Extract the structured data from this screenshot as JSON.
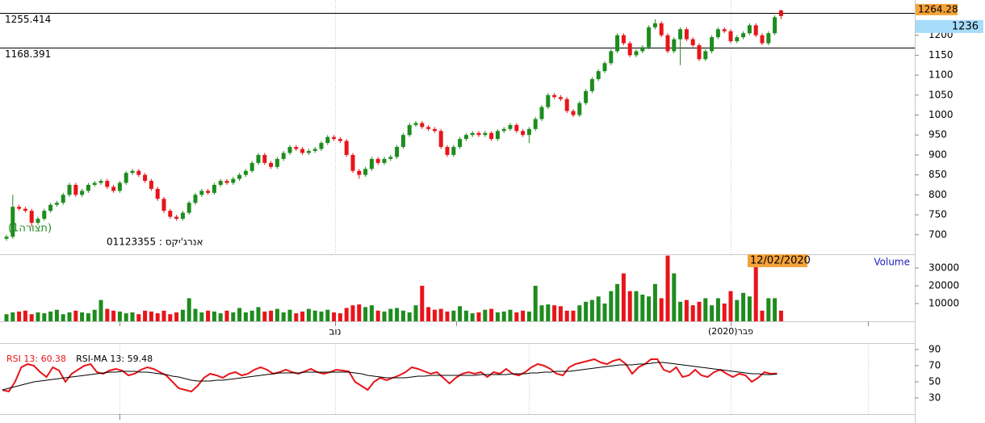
{
  "chart_data": [
    {
      "type": "candlestick",
      "open": [
        690,
        695,
        770,
        765,
        760,
        730,
        740,
        760,
        775,
        780,
        800,
        825,
        800,
        810,
        825,
        830,
        835,
        820,
        810,
        830,
        855,
        860,
        850,
        835,
        815,
        790,
        760,
        745,
        740,
        755,
        780,
        800,
        810,
        805,
        825,
        835,
        830,
        840,
        850,
        860,
        880,
        900,
        880,
        870,
        890,
        905,
        920,
        915,
        905,
        910,
        915,
        930,
        945,
        940,
        935,
        900,
        860,
        850,
        865,
        890,
        880,
        890,
        895,
        920,
        950,
        975,
        980,
        970,
        965,
        960,
        920,
        900,
        920,
        940,
        950,
        955,
        950,
        955,
        940,
        960,
        965,
        975,
        960,
        950,
        965,
        990,
        1020,
        1050,
        1045,
        1040,
        1010,
        1000,
        1030,
        1060,
        1090,
        1110,
        1130,
        1160,
        1200,
        1180,
        1150,
        1160,
        1170,
        1220,
        1230,
        1200,
        1160,
        1190,
        1215,
        1190,
        1175,
        1140,
        1160,
        1195,
        1215,
        1210,
        1185,
        1195,
        1205,
        1225,
        1200,
        1180,
        1205,
        1262
      ],
      "high": [
        700,
        800,
        775,
        770,
        765,
        745,
        765,
        780,
        785,
        805,
        830,
        830,
        815,
        830,
        835,
        840,
        840,
        825,
        835,
        860,
        865,
        865,
        855,
        840,
        820,
        795,
        765,
        750,
        760,
        785,
        805,
        815,
        815,
        830,
        840,
        840,
        845,
        855,
        865,
        885,
        905,
        905,
        885,
        895,
        910,
        925,
        925,
        920,
        915,
        920,
        935,
        950,
        950,
        945,
        940,
        905,
        865,
        870,
        895,
        895,
        895,
        900,
        925,
        955,
        980,
        985,
        985,
        975,
        970,
        965,
        925,
        925,
        945,
        955,
        960,
        960,
        960,
        960,
        965,
        970,
        980,
        980,
        965,
        970,
        995,
        1025,
        1055,
        1055,
        1050,
        1045,
        1015,
        1035,
        1065,
        1095,
        1115,
        1135,
        1165,
        1205,
        1205,
        1185,
        1165,
        1175,
        1225,
        1240,
        1235,
        1205,
        1195,
        1220,
        1220,
        1195,
        1180,
        1165,
        1200,
        1220,
        1220,
        1215,
        1200,
        1210,
        1230,
        1230,
        1205,
        1210,
        1250,
        1264.28
      ],
      "low": [
        685,
        690,
        760,
        755,
        720,
        725,
        735,
        755,
        770,
        775,
        795,
        795,
        795,
        805,
        820,
        825,
        815,
        805,
        805,
        825,
        850,
        845,
        830,
        810,
        785,
        755,
        740,
        735,
        735,
        750,
        775,
        795,
        800,
        800,
        820,
        825,
        825,
        835,
        845,
        855,
        875,
        875,
        865,
        865,
        885,
        900,
        910,
        900,
        900,
        905,
        910,
        925,
        935,
        930,
        895,
        855,
        840,
        845,
        860,
        875,
        875,
        885,
        890,
        915,
        945,
        970,
        965,
        960,
        955,
        915,
        895,
        895,
        915,
        935,
        945,
        945,
        945,
        935,
        935,
        955,
        960,
        955,
        945,
        930,
        960,
        985,
        1015,
        1040,
        1035,
        1005,
        995,
        995,
        1025,
        1055,
        1085,
        1105,
        1125,
        1155,
        1175,
        1145,
        1145,
        1155,
        1165,
        1215,
        1195,
        1155,
        1155,
        1125,
        1185,
        1170,
        1135,
        1135,
        1155,
        1190,
        1205,
        1180,
        1180,
        1190,
        1200,
        1195,
        1175,
        1175,
        1200,
        1240
      ],
      "close": [
        695,
        770,
        765,
        760,
        730,
        740,
        760,
        775,
        780,
        800,
        825,
        800,
        810,
        825,
        830,
        835,
        820,
        810,
        830,
        855,
        860,
        850,
        835,
        815,
        790,
        760,
        745,
        740,
        755,
        780,
        800,
        810,
        805,
        825,
        835,
        830,
        840,
        850,
        860,
        880,
        900,
        880,
        870,
        890,
        905,
        920,
        915,
        905,
        910,
        915,
        930,
        945,
        940,
        935,
        900,
        860,
        850,
        865,
        890,
        880,
        890,
        895,
        920,
        950,
        975,
        980,
        970,
        965,
        960,
        920,
        900,
        920,
        940,
        950,
        955,
        950,
        955,
        940,
        960,
        965,
        975,
        960,
        950,
        965,
        990,
        1020,
        1050,
        1045,
        1040,
        1010,
        1000,
        1030,
        1060,
        1090,
        1110,
        1130,
        1160,
        1200,
        1180,
        1150,
        1160,
        1170,
        1220,
        1230,
        1200,
        1160,
        1190,
        1215,
        1190,
        1175,
        1140,
        1160,
        1195,
        1215,
        1210,
        1185,
        1195,
        1205,
        1225,
        1200,
        1180,
        1205,
        1245,
        1248
      ],
      "ylim": [
        651,
        1260
      ],
      "yticks": [
        700,
        750,
        800,
        850,
        900,
        950,
        1000,
        1050,
        1100,
        1150,
        1200
      ],
      "lines": [
        1255.414,
        1168.391
      ],
      "last_price": 1264.28,
      "cursor_price": 1236,
      "up_color": "#1e8c1e",
      "down_color": "#e8141a"
    },
    {
      "type": "bar",
      "title": "Volume",
      "values": [
        4000,
        5000,
        5500,
        6000,
        4000,
        5000,
        4500,
        5500,
        6500,
        4000,
        5000,
        6000,
        5000,
        4500,
        6500,
        12000,
        7000,
        6000,
        5500,
        4500,
        5000,
        4000,
        6000,
        5500,
        4500,
        6000,
        4000,
        5000,
        6500,
        13000,
        7000,
        5000,
        6000,
        5500,
        4500,
        6000,
        5000,
        7500,
        5000,
        6000,
        8000,
        5500,
        6000,
        7000,
        5000,
        6500,
        4500,
        5500,
        7000,
        6000,
        5500,
        6500,
        5000,
        4500,
        7500,
        9000,
        9500,
        8000,
        9000,
        6000,
        5500,
        7000,
        7500,
        6000,
        5000,
        9000,
        20000,
        8000,
        6500,
        7000,
        5500,
        6000,
        8500,
        6000,
        4500,
        5000,
        6500,
        7000,
        5000,
        5500,
        6500,
        5000,
        6000,
        5500,
        20000,
        9000,
        9500,
        9000,
        8500,
        6000,
        6000,
        9000,
        11000,
        12000,
        14000,
        10000,
        17000,
        21000,
        27000,
        17000,
        17000,
        15000,
        14000,
        21000,
        13000,
        37000,
        27000,
        11000,
        12000,
        9000,
        11000,
        13000,
        9000,
        13000,
        10000,
        17000,
        12000,
        16000,
        14000,
        31000,
        6000,
        13000,
        13000,
        6000
      ],
      "ylim": [
        0,
        37300
      ],
      "yticks": [
        10000,
        20000,
        30000
      ],
      "date_marker": "12/02/2020"
    },
    {
      "type": "line",
      "ylim": [
        10,
        98
      ],
      "yticks": [
        30,
        50,
        70,
        90
      ],
      "series": [
        {
          "name": "RSI 13: 60.38",
          "color": "#e8141a",
          "values": [
            40,
            38,
            50,
            68,
            72,
            70,
            62,
            56,
            68,
            64,
            50,
            60,
            65,
            70,
            72,
            62,
            60,
            64,
            66,
            64,
            58,
            60,
            65,
            68,
            66,
            62,
            58,
            50,
            42,
            40,
            38,
            45,
            55,
            60,
            58,
            55,
            60,
            62,
            58,
            60,
            65,
            68,
            65,
            60,
            62,
            65,
            62,
            60,
            63,
            66,
            62,
            60,
            62,
            65,
            64,
            63,
            50,
            45,
            40,
            50,
            55,
            52,
            55,
            58,
            62,
            68,
            66,
            63,
            60,
            62,
            55,
            48,
            55,
            60,
            62,
            60,
            62,
            56,
            62,
            60,
            66,
            60,
            58,
            62,
            68,
            72,
            70,
            66,
            60,
            58,
            68,
            72,
            74,
            76,
            78,
            74,
            72,
            76,
            78,
            72,
            60,
            68,
            72,
            78,
            78,
            65,
            62,
            68,
            56,
            58,
            65,
            58,
            56,
            62,
            65,
            60,
            56,
            60,
            58,
            50,
            55,
            62,
            60,
            60.38
          ]
        },
        {
          "name": "RSI-MA 13: 59.48",
          "color": "#000000",
          "values": [
            40,
            42,
            44,
            46,
            48,
            50,
            51,
            52,
            53,
            54,
            55,
            56,
            57,
            58,
            59,
            60,
            61,
            62,
            62,
            63,
            63,
            63,
            62,
            62,
            61,
            60,
            59,
            57,
            56,
            54,
            52,
            51,
            51,
            51,
            52,
            52,
            53,
            54,
            55,
            56,
            57,
            58,
            59,
            60,
            61,
            61,
            61,
            61,
            62,
            62,
            62,
            62,
            62,
            62,
            62,
            62,
            61,
            60,
            58,
            57,
            56,
            55,
            55,
            55,
            55,
            56,
            57,
            57,
            58,
            58,
            58,
            58,
            58,
            58,
            58,
            58,
            59,
            59,
            59,
            59,
            59,
            60,
            60,
            60,
            61,
            61,
            62,
            62,
            63,
            63,
            63,
            64,
            65,
            66,
            67,
            68,
            69,
            70,
            71,
            71,
            71,
            72,
            72,
            73,
            74,
            74,
            73,
            72,
            71,
            70,
            69,
            68,
            67,
            66,
            65,
            64,
            63,
            62,
            61,
            60,
            60,
            59,
            59,
            59.48
          ]
        }
      ]
    }
  ],
  "security": "אנרג'יקס : 01123355",
  "layout_name": "(1תצורה)",
  "months": [
    "נוב",
    "פבר(2020)"
  ]
}
